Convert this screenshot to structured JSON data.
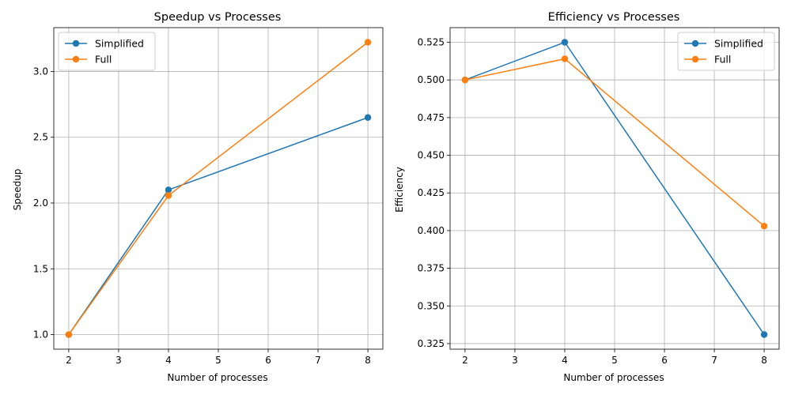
{
  "chart_data": [
    {
      "type": "line",
      "title": "Speedup vs Processes",
      "xlabel": "Number of processes",
      "ylabel": "Speedup",
      "x": [
        2,
        4,
        8
      ],
      "xlim": [
        1.7,
        8.3
      ],
      "ylim": [
        0.889,
        3.333
      ],
      "xticks": [
        "2",
        "3",
        "4",
        "5",
        "6",
        "7",
        "8"
      ],
      "yticks": [
        "1.0",
        "1.5",
        "2.0",
        "2.5",
        "3.0"
      ],
      "grid": true,
      "legend_position": "upper-left",
      "series": [
        {
          "name": "Simplified",
          "color": "#1f77b4",
          "values": [
            1.0,
            2.1,
            2.65
          ]
        },
        {
          "name": "Full",
          "color": "#ff7f0e",
          "values": [
            1.0,
            2.057,
            3.222
          ]
        }
      ]
    },
    {
      "type": "line",
      "title": "Efficiency vs Processes",
      "xlabel": "Number of processes",
      "ylabel": "Efficiency",
      "x": [
        2,
        4,
        8
      ],
      "xlim": [
        1.7,
        8.3
      ],
      "ylim": [
        0.3213,
        0.5347
      ],
      "xticks": [
        "2",
        "3",
        "4",
        "5",
        "6",
        "7",
        "8"
      ],
      "yticks": [
        "0.325",
        "0.350",
        "0.375",
        "0.400",
        "0.425",
        "0.450",
        "0.475",
        "0.500",
        "0.525"
      ],
      "grid": true,
      "legend_position": "upper-right",
      "series": [
        {
          "name": "Simplified",
          "color": "#1f77b4",
          "values": [
            0.5,
            0.525,
            0.331
          ]
        },
        {
          "name": "Full",
          "color": "#ff7f0e",
          "values": [
            0.5,
            0.514,
            0.403
          ]
        }
      ]
    }
  ]
}
